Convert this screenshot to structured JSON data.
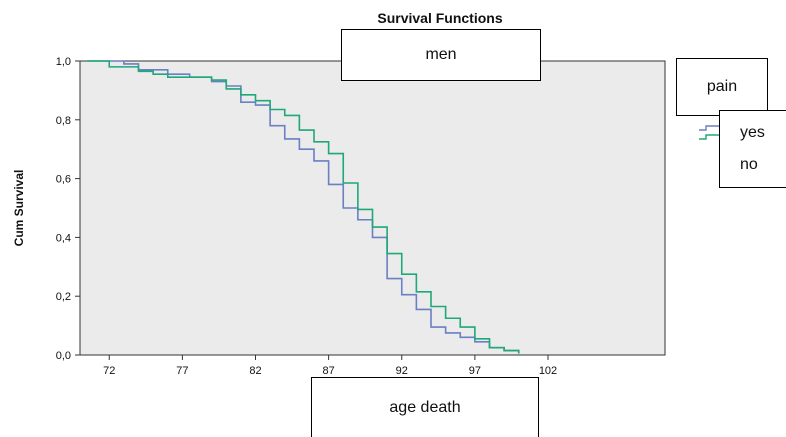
{
  "chart_data": {
    "type": "line",
    "title": "Survival Functions",
    "subtitle": "men",
    "xlabel": "age death",
    "ylabel": "Cum Survival",
    "xlim": [
      70,
      110
    ],
    "ylim": [
      0.0,
      1.0
    ],
    "x_ticks": [
      72,
      77,
      82,
      87,
      92,
      97,
      102
    ],
    "x_tick_labels": [
      "72",
      "77",
      "82",
      "87",
      "92",
      "97",
      "102"
    ],
    "y_ticks": [
      0.0,
      0.2,
      0.4,
      0.6,
      0.8,
      1.0
    ],
    "y_tick_labels": [
      "0,0",
      "0,2",
      "0,4",
      "0,6",
      "0,8",
      "1,0"
    ],
    "grid": false,
    "legend": {
      "title": "pain",
      "placement": "right"
    },
    "series": [
      {
        "name": "yes",
        "color": "#6b7fc4",
        "step_x": [
          70.5,
          73,
          74,
          76,
          77.5,
          79,
          80,
          81,
          82,
          83,
          84,
          85,
          86,
          87,
          88,
          89,
          90,
          91,
          92,
          93,
          94,
          95,
          96,
          97,
          98,
          99,
          100
        ],
        "step_y": [
          1.0,
          0.99,
          0.97,
          0.955,
          0.945,
          0.93,
          0.915,
          0.86,
          0.85,
          0.78,
          0.735,
          0.7,
          0.66,
          0.58,
          0.5,
          0.46,
          0.4,
          0.26,
          0.205,
          0.155,
          0.095,
          0.075,
          0.06,
          0.045,
          0.025,
          0.015,
          0.005
        ]
      },
      {
        "name": "no",
        "color": "#1fa878",
        "step_x": [
          70.5,
          72,
          74,
          75,
          76,
          79,
          80,
          81,
          82,
          83,
          84,
          85,
          86,
          87,
          88,
          89,
          90,
          91,
          92,
          93,
          94,
          95,
          96,
          97,
          98,
          99,
          100
        ],
        "step_y": [
          1.0,
          0.98,
          0.965,
          0.955,
          0.945,
          0.935,
          0.905,
          0.885,
          0.865,
          0.835,
          0.815,
          0.765,
          0.725,
          0.685,
          0.585,
          0.495,
          0.435,
          0.345,
          0.275,
          0.215,
          0.165,
          0.125,
          0.095,
          0.055,
          0.025,
          0.015,
          0.005
        ]
      }
    ]
  }
}
